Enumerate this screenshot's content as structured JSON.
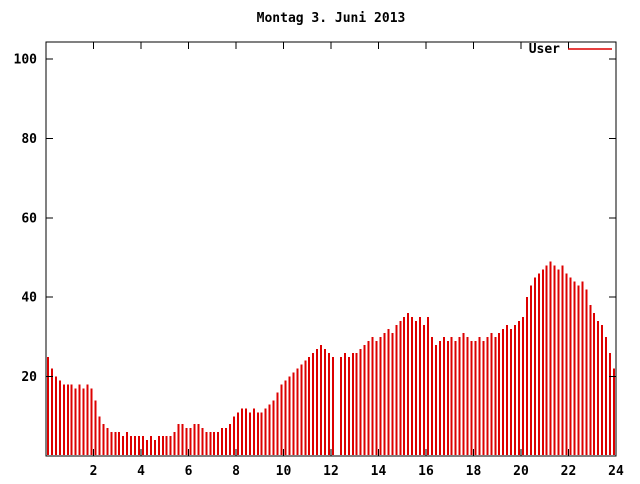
{
  "legend": {
    "label": "User",
    "color": "#dd0000"
  },
  "chart_data": {
    "type": "bar",
    "title": "Montag 3. Juni 2013",
    "xlabel": "",
    "ylabel": "",
    "xlim": [
      0,
      24
    ],
    "ylim": [
      0,
      104
    ],
    "x_tick_labels": [
      2,
      4,
      6,
      8,
      10,
      12,
      14,
      16,
      18,
      20,
      22,
      24
    ],
    "y_tick_labels": [
      20,
      40,
      60,
      80,
      100
    ],
    "grid": false,
    "legend_position": "top-right",
    "bar_color": "#dd0000",
    "sample_interval_minutes": 10,
    "x_unit": "hour-of-day",
    "series": [
      {
        "name": "User",
        "values": [
          25,
          22,
          20,
          19,
          18,
          18,
          18,
          17,
          18,
          17,
          18,
          17,
          14,
          10,
          8,
          7,
          6,
          6,
          6,
          5,
          6,
          5,
          5,
          5,
          5,
          4,
          5,
          4,
          5,
          5,
          5,
          5,
          6,
          8,
          8,
          7,
          7,
          8,
          8,
          7,
          6,
          6,
          6,
          6,
          7,
          7,
          8,
          10,
          11,
          12,
          12,
          11,
          12,
          11,
          11,
          12,
          13,
          14,
          16,
          18,
          19,
          20,
          21,
          22,
          23,
          24,
          25,
          26,
          27,
          28,
          27,
          26,
          25,
          0,
          25,
          26,
          25,
          26,
          26,
          27,
          28,
          29,
          30,
          29,
          30,
          31,
          32,
          31,
          33,
          34,
          35,
          36,
          35,
          34,
          35,
          33,
          35,
          30,
          28,
          29,
          30,
          29,
          30,
          29,
          30,
          31,
          30,
          29,
          29,
          30,
          29,
          30,
          31,
          30,
          31,
          32,
          33,
          32,
          33,
          34,
          35,
          40,
          43,
          45,
          46,
          47,
          48,
          49,
          48,
          47,
          48,
          46,
          45,
          44,
          43,
          44,
          42,
          38,
          36,
          34,
          33,
          30,
          26,
          22
        ]
      }
    ]
  }
}
